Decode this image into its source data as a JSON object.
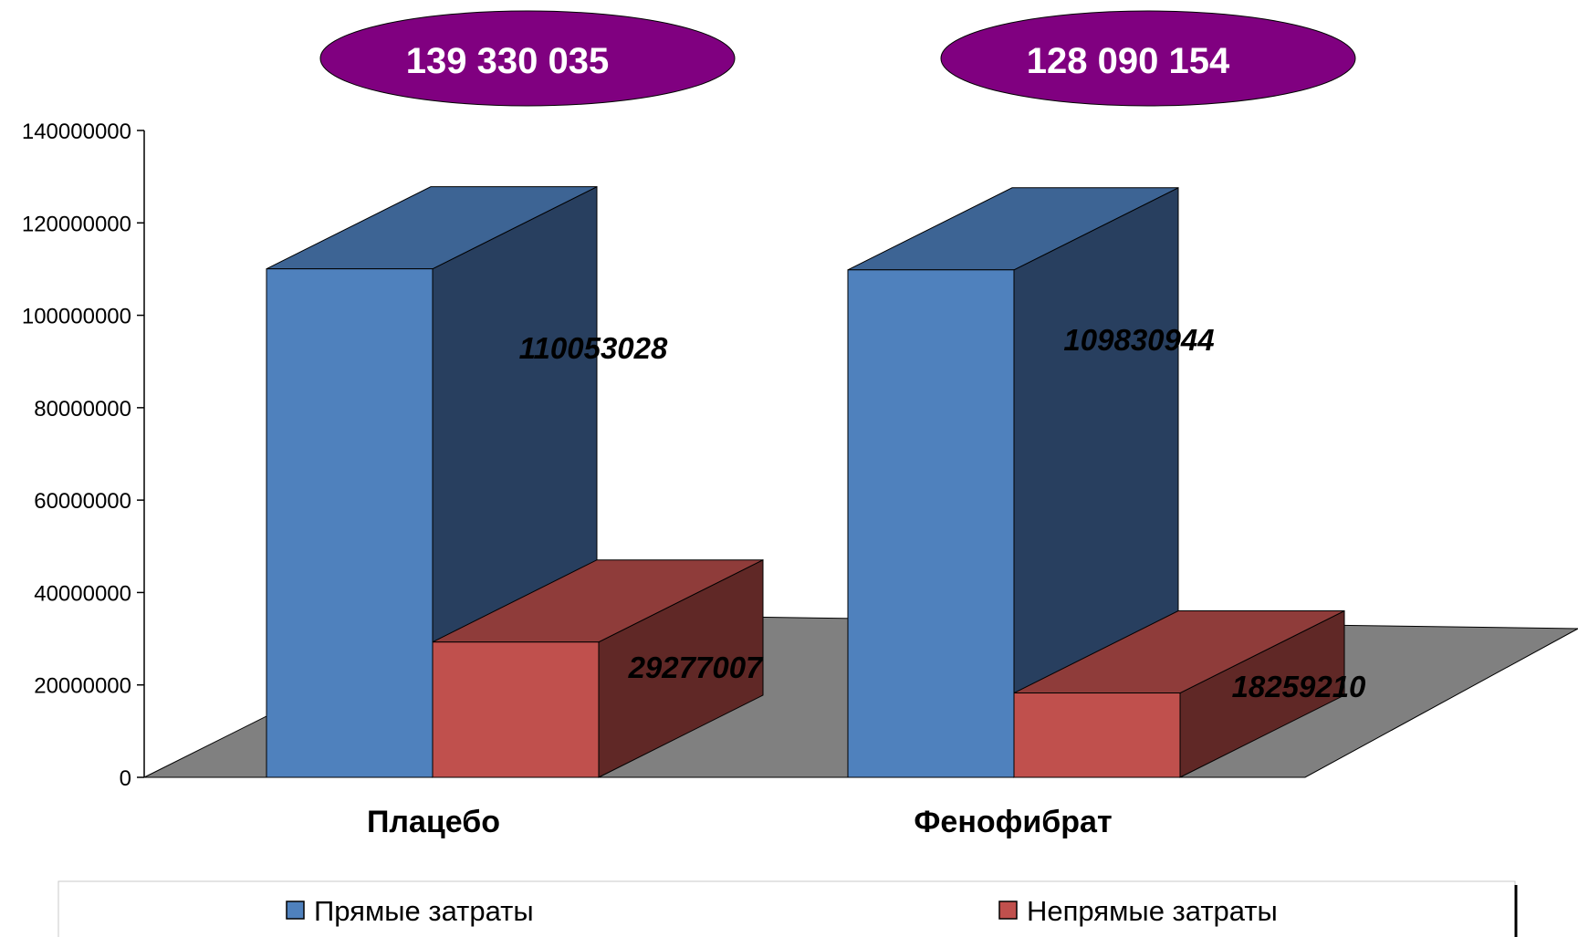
{
  "chart_data": {
    "type": "bar",
    "categories": [
      "Плацебо",
      "Фенофибрат"
    ],
    "series": [
      {
        "name": "Прямые затраты",
        "values": [
          110053028,
          109830944
        ]
      },
      {
        "name": "Непрямые затраты",
        "values": [
          29277007,
          18259210
        ]
      }
    ],
    "data_labels": [
      "110053028",
      "109830944",
      "29277007",
      "18259210"
    ],
    "totals": [
      "139 330 035",
      "128 090 154"
    ],
    "ylim": [
      0,
      140000000
    ],
    "yticks": [
      0,
      20000000,
      40000000,
      60000000,
      80000000,
      100000000,
      120000000,
      140000000
    ],
    "ytick_labels": [
      "0",
      "20000000",
      "40000000",
      "60000000",
      "80000000",
      "100000000",
      "120000000",
      "140000000"
    ],
    "legend_position": "bottom",
    "grid": false,
    "style": "3d",
    "colors": {
      "direct_front": "#4f81bd",
      "direct_side": "#283f5f",
      "direct_top": "#3d6494",
      "indirect_front": "#c0504d",
      "indirect_side": "#602826",
      "indirect_top": "#8f3c3a",
      "floor": "#808080",
      "ellipse": "#800080"
    }
  }
}
